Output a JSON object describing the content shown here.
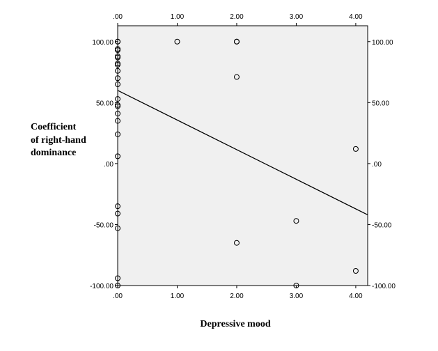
{
  "chart_data": {
    "type": "scatter",
    "xlabel": "Depressive mood",
    "ylabel_lines": [
      "Coefficient",
      "of right-hand",
      "dominance"
    ],
    "xlim": [
      0,
      4.2
    ],
    "ylim": [
      -100,
      113
    ],
    "x_ticks": [
      0,
      1,
      2,
      3,
      4
    ],
    "x_tick_labels": [
      ".00",
      "1.00",
      "2.00",
      "3.00",
      "4.00"
    ],
    "y_ticks": [
      100,
      50,
      0,
      -50,
      -100
    ],
    "y_tick_labels": [
      "100.00",
      "50.00",
      ".00",
      "-50.00",
      "-100.00"
    ],
    "plot_background": "#f0f0f0",
    "grid": false,
    "points": [
      {
        "x": 0,
        "y": 100
      },
      {
        "x": 0,
        "y": 100
      },
      {
        "x": 0,
        "y": 94
      },
      {
        "x": 0,
        "y": 93
      },
      {
        "x": 0,
        "y": 88
      },
      {
        "x": 0,
        "y": 87
      },
      {
        "x": 0,
        "y": 82
      },
      {
        "x": 0,
        "y": 81
      },
      {
        "x": 0,
        "y": 76
      },
      {
        "x": 0,
        "y": 70
      },
      {
        "x": 0,
        "y": 65
      },
      {
        "x": 0,
        "y": 53
      },
      {
        "x": 0,
        "y": 48
      },
      {
        "x": 0,
        "y": 47
      },
      {
        "x": 0,
        "y": 41
      },
      {
        "x": 0,
        "y": 35
      },
      {
        "x": 0,
        "y": 24
      },
      {
        "x": 0,
        "y": 6
      },
      {
        "x": 0,
        "y": -35
      },
      {
        "x": 0,
        "y": -41
      },
      {
        "x": 0,
        "y": -53
      },
      {
        "x": 0,
        "y": -94
      },
      {
        "x": 0,
        "y": -100
      },
      {
        "x": 1,
        "y": 100
      },
      {
        "x": 2,
        "y": 100
      },
      {
        "x": 2,
        "y": 100
      },
      {
        "x": 2,
        "y": 71
      },
      {
        "x": 2,
        "y": -65
      },
      {
        "x": 3,
        "y": -47
      },
      {
        "x": 3,
        "y": -100
      },
      {
        "x": 4,
        "y": 12
      },
      {
        "x": 4,
        "y": -88
      }
    ],
    "fit_line": {
      "x": [
        0,
        4.2
      ],
      "y": [
        60,
        -42
      ]
    }
  }
}
